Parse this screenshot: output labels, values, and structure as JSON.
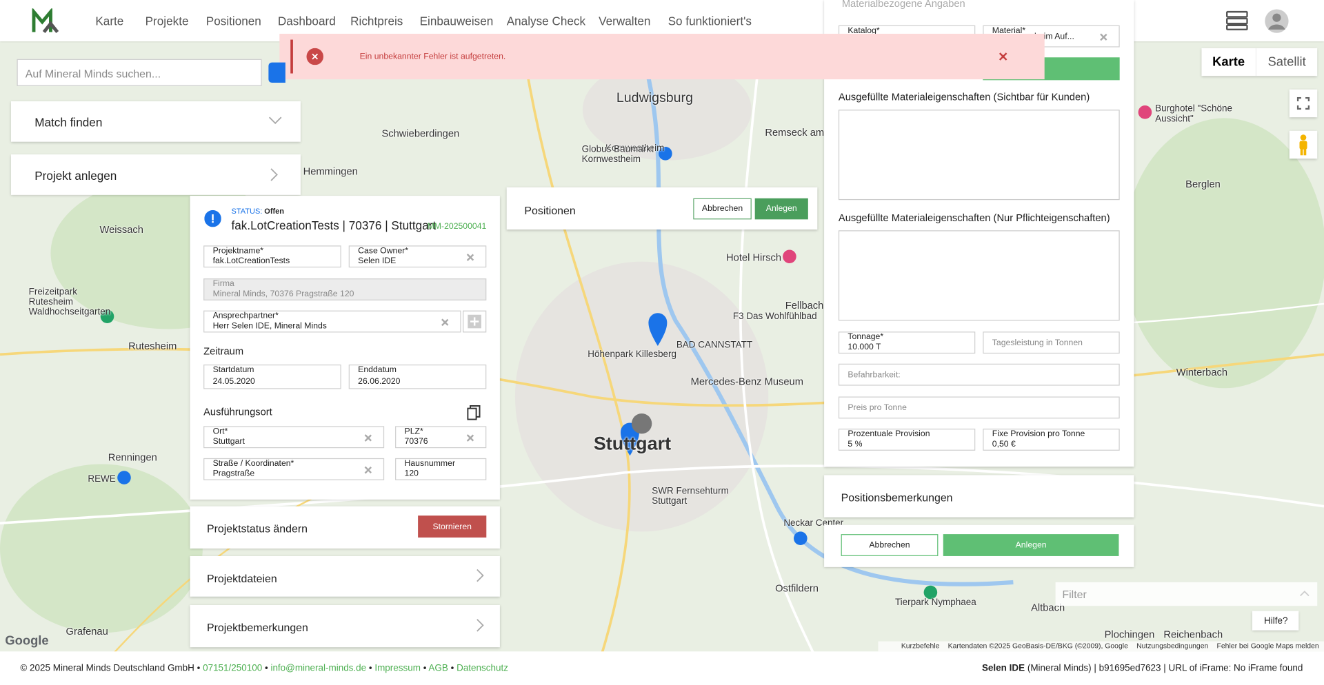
{
  "header": {
    "nav": [
      "Karte",
      "Projekte",
      "Positionen",
      "Dashboard",
      "Richtpreis",
      "Einbauweisen",
      "Analyse Check",
      "Verwalten",
      "So funktioniert's"
    ]
  },
  "search": {
    "placeholder": "Auf Mineral Minds suchen..."
  },
  "error": {
    "message": "Ein unbekannter Fehler ist aufgetreten."
  },
  "sidebar": {
    "match": "Match finden",
    "create": "Projekt anlegen"
  },
  "map": {
    "types": [
      "Karte",
      "Satellit"
    ],
    "labels": [
      "Ludwigsburg",
      "Schwieberdingen",
      "Hemmingen",
      "Kornwestheim",
      "Remseck am Neckar",
      "Weissach",
      "Rutesheim",
      "Renningen",
      "Stuttgart",
      "Fellbach",
      "BAD CANNSTATT",
      "Mercedes-Benz Museum",
      "Berglen",
      "Winterbach",
      "Grafenau",
      "Plochingen",
      "Reichenbach",
      "Altbach",
      "Hotel Hirsch",
      "Höhenpark Killesberg",
      "SWR Fernsehturm Stuttgart",
      "Freizeitpark Rutesheim Waldhochseitgarten",
      "Burghotel \"Schöne Aussicht\"",
      "F3 Das Wohlfühlbad",
      "Globus Baumarkt Kornwestheim",
      "Tierpark Nymphaea",
      "Neckar Center",
      "REWE",
      "Ostfildern"
    ],
    "attribution": [
      "Kurzbefehle",
      "Kartendaten ©2025 GeoBasis-DE/BKG (©2009), Google",
      "Nutzungsbedingungen",
      "Fehler bei Google Maps melden"
    ],
    "logo": "Google",
    "filter": "Filter",
    "help": "Hilfe?"
  },
  "project": {
    "status_label": "STATUS:",
    "status": "Offen",
    "title": "fak.LotCreationTests | 70376 | Stuttgart",
    "id": "MM-202500041",
    "fields": [
      {
        "label": "Projektname*",
        "value": "fak.LotCreationTests"
      },
      {
        "label": "Case Owner*",
        "value": "Selen IDE"
      },
      {
        "label": "Firma",
        "value": "Mineral Minds, 70376 Pragstraße 120"
      },
      {
        "label": "Ansprechpartner*",
        "value": "Herr Selen IDE, Mineral Minds"
      },
      {
        "label": "Startdatum",
        "value": "24.05.2020"
      },
      {
        "label": "Enddatum",
        "value": "26.06.2020"
      },
      {
        "label": "Ort*",
        "value": "Stuttgart"
      },
      {
        "label": "PLZ*",
        "value": "70376"
      },
      {
        "label": "Straße / Koordinaten*",
        "value": "Pragstraße"
      },
      {
        "label": "Hausnummer",
        "value": "120"
      }
    ],
    "period": "Zeitraum",
    "location": "Ausführungsort",
    "status_change": "Projektstatus ändern",
    "cancel": "Stornieren",
    "files": "Projektdateien",
    "remarks": "Projektbemerkungen"
  },
  "positions": {
    "title": "Positionen",
    "cancel": "Abbrechen",
    "create": "Anlegen"
  },
  "position_form": {
    "section": "Materialbezogene Angaben",
    "catalog": "Katalog*",
    "material": {
      "label": "Material*",
      "value": "beim Auf..."
    },
    "props_customers": "Ausgefüllte Materialeigenschaften (Sichtbar für Kunden)",
    "props_required": "Ausgefüllte Materialeigenschaften (Nur Pflichteigenschaften)",
    "tonnage": {
      "label": "Tonnage*",
      "value": "10.000 T"
    },
    "daily": "Tagesleistung in Tonnen",
    "access": "Befahrbarkeit:",
    "price": "Preis pro Tonne",
    "percent": {
      "label": "Prozentuale Provision",
      "value": "5 %"
    },
    "fixed": {
      "label": "Fixe Provision pro Tonne",
      "value": "0,50 €"
    },
    "remarks": "Positionsbemerkungen",
    "cancel": "Abbrechen",
    "create": "Anlegen"
  },
  "footer": {
    "copyright": "© 2025 Mineral Minds Deutschland GmbH •",
    "phone": "07151/250100",
    "email": "info@mineral-minds.de",
    "links": [
      "Impressum",
      "AGB",
      "Datenschutz"
    ],
    "user": "Selen IDE",
    "info": "(Mineral Minds) | b91695ed7623 | URL of iFrame: No iFrame found"
  }
}
